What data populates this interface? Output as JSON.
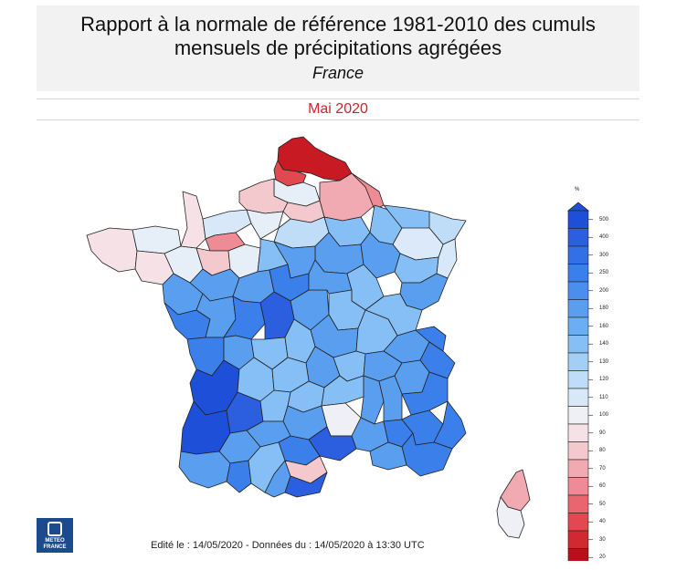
{
  "header": {
    "title": "Rapport à la normale de référence 1981-2010 des cumuls mensuels de précipitations agrégées",
    "subtitle": "France"
  },
  "period": {
    "label": "Mai 2020"
  },
  "footer": {
    "text": "Edité le : 14/05/2020 - Données du : 14/05/2020 à 13:30 UTC"
  },
  "logo": {
    "line1": "METEO",
    "line2": "FRANCE"
  },
  "legend": {
    "unit": "%",
    "ticks": [
      {
        "label": "500",
        "color": "#1e4fd8"
      },
      {
        "label": "400",
        "color": "#2b5fe0"
      },
      {
        "label": "300",
        "color": "#336fe6"
      },
      {
        "label": "250",
        "color": "#3a7fea"
      },
      {
        "label": "200",
        "color": "#4a8fee"
      },
      {
        "label": "180",
        "color": "#5a9ef0"
      },
      {
        "label": "160",
        "color": "#6aaef3"
      },
      {
        "label": "140",
        "color": "#86bff5"
      },
      {
        "label": "130",
        "color": "#a3cff7"
      },
      {
        "label": "120",
        "color": "#bfdcf8"
      },
      {
        "label": "110",
        "color": "#d8e8f8"
      },
      {
        "label": "100",
        "color": "#eef0f5"
      },
      {
        "label": "90",
        "color": "#f6e2e6"
      },
      {
        "label": "80",
        "color": "#f4c9ce"
      },
      {
        "label": "70",
        "color": "#f2aab2"
      },
      {
        "label": "60",
        "color": "#ee8b95"
      },
      {
        "label": "50",
        "color": "#e96670"
      },
      {
        "label": "40",
        "color": "#e24850"
      },
      {
        "label": "30",
        "color": "#d12832"
      },
      {
        "label": "20",
        "color": "#b81018"
      }
    ]
  },
  "map_colors": {
    "deep_blue": "#1e4fd8",
    "blue": "#3a7fea",
    "mid_blue": "#5a9ef0",
    "light_blue": "#86bff5",
    "pale_blue": "#bfdcf8",
    "very_pale": "#dbe9f8",
    "neutral": "#eef0f5",
    "pink": "#f4c9ce",
    "salmon": "#ee8b95",
    "red": "#e24850",
    "dark_red": "#c81a22"
  }
}
